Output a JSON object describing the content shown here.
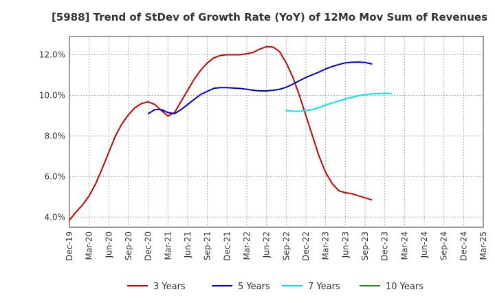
{
  "chart_data": {
    "type": "line",
    "title": "[5988]  Trend of StDev of Growth Rate (YoY) of 12Mo Mov Sum of Revenues",
    "xlabel": "",
    "ylabel": "",
    "ylim": [
      3.5,
      12.9
    ],
    "y_ticks": [
      4.0,
      6.0,
      8.0,
      10.0,
      12.0
    ],
    "y_tick_labels": [
      "4.0%",
      "6.0%",
      "8.0%",
      "10.0%",
      "12.0%"
    ],
    "x_ticks": [
      "Dec-19",
      "Mar-20",
      "Jun-20",
      "Sep-20",
      "Dec-20",
      "Mar-21",
      "Jun-21",
      "Sep-21",
      "Dec-21",
      "Mar-22",
      "Jun-22",
      "Sep-22",
      "Dec-22",
      "Mar-23",
      "Jun-23",
      "Sep-23",
      "Dec-23",
      "Mar-24",
      "Jun-24",
      "Sep-24",
      "Dec-24",
      "Mar-25"
    ],
    "grid": true,
    "legend_position": "bottom",
    "series": [
      {
        "name": "3 Years",
        "color": "#cc0000",
        "values": [
          [
            0,
            3.85
          ],
          [
            1,
            4.25
          ],
          [
            2,
            4.6
          ],
          [
            3,
            5.05
          ],
          [
            4,
            5.65
          ],
          [
            5,
            6.4
          ],
          [
            6,
            7.2
          ],
          [
            7,
            8.0
          ],
          [
            8,
            8.6
          ],
          [
            9,
            9.05
          ],
          [
            10,
            9.4
          ],
          [
            11,
            9.6
          ],
          [
            12,
            9.68
          ],
          [
            13,
            9.55
          ],
          [
            14,
            9.25
          ],
          [
            15,
            8.98
          ],
          [
            16,
            9.15
          ],
          [
            17,
            9.7
          ],
          [
            18,
            10.25
          ],
          [
            19,
            10.8
          ],
          [
            20,
            11.25
          ],
          [
            21,
            11.6
          ],
          [
            22,
            11.85
          ],
          [
            23,
            11.97
          ],
          [
            24,
            12.0
          ],
          [
            25,
            12.0
          ],
          [
            26,
            12.0
          ],
          [
            27,
            12.05
          ],
          [
            28,
            12.12
          ],
          [
            29,
            12.28
          ],
          [
            30,
            12.4
          ],
          [
            31,
            12.38
          ],
          [
            32,
            12.15
          ],
          [
            33,
            11.6
          ],
          [
            34,
            10.9
          ],
          [
            35,
            10.0
          ],
          [
            36,
            9.0
          ],
          [
            37,
            8.0
          ],
          [
            38,
            7.0
          ],
          [
            39,
            6.2
          ],
          [
            40,
            5.65
          ],
          [
            41,
            5.3
          ],
          [
            42,
            5.2
          ],
          [
            43,
            5.15
          ],
          [
            44,
            5.05
          ],
          [
            45,
            4.95
          ],
          [
            46,
            4.85
          ]
        ]
      },
      {
        "name": "5 Years",
        "color": "#0000cc",
        "values": [
          [
            12,
            9.1
          ],
          [
            13,
            9.3
          ],
          [
            14,
            9.3
          ],
          [
            15,
            9.15
          ],
          [
            16,
            9.1
          ],
          [
            17,
            9.3
          ],
          [
            18,
            9.55
          ],
          [
            19,
            9.8
          ],
          [
            20,
            10.05
          ],
          [
            21,
            10.2
          ],
          [
            22,
            10.35
          ],
          [
            23,
            10.38
          ],
          [
            24,
            10.38
          ],
          [
            25,
            10.36
          ],
          [
            26,
            10.34
          ],
          [
            27,
            10.3
          ],
          [
            28,
            10.25
          ],
          [
            29,
            10.22
          ],
          [
            30,
            10.22
          ],
          [
            31,
            10.25
          ],
          [
            32,
            10.3
          ],
          [
            33,
            10.4
          ],
          [
            34,
            10.55
          ],
          [
            35,
            10.72
          ],
          [
            36,
            10.88
          ],
          [
            37,
            11.02
          ],
          [
            38,
            11.15
          ],
          [
            39,
            11.3
          ],
          [
            40,
            11.42
          ],
          [
            41,
            11.52
          ],
          [
            42,
            11.6
          ],
          [
            43,
            11.63
          ],
          [
            44,
            11.64
          ],
          [
            45,
            11.62
          ],
          [
            46,
            11.55
          ]
        ]
      },
      {
        "name": "7 Years",
        "color": "#00e5e5",
        "values": [
          [
            33,
            9.25
          ],
          [
            34,
            9.22
          ],
          [
            35,
            9.22
          ],
          [
            36,
            9.24
          ],
          [
            37,
            9.3
          ],
          [
            38,
            9.4
          ],
          [
            39,
            9.52
          ],
          [
            40,
            9.62
          ],
          [
            41,
            9.72
          ],
          [
            42,
            9.82
          ],
          [
            43,
            9.9
          ],
          [
            44,
            9.98
          ],
          [
            45,
            10.03
          ],
          [
            46,
            10.07
          ],
          [
            47,
            10.09
          ],
          [
            48,
            10.1
          ],
          [
            49,
            10.09
          ]
        ]
      },
      {
        "name": "10 Years",
        "color": "#228b22",
        "values": []
      }
    ]
  }
}
